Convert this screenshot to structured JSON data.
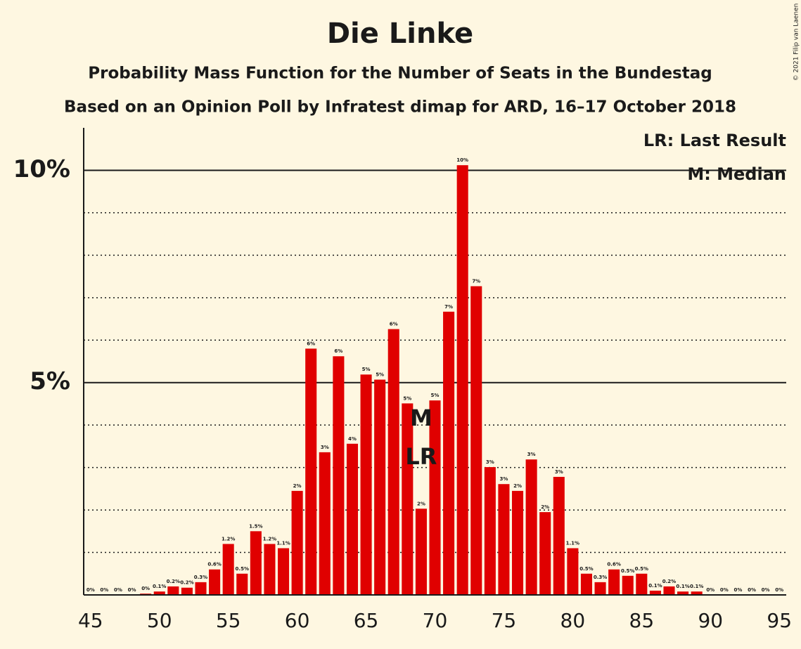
{
  "chart_data": {
    "type": "bar",
    "title": "Die Linke",
    "subtitle": "Probability Mass Function for the Number of Seats in the Bundestag",
    "subtitle2": "Based on an Opinion Poll by Infratest dimap for ARD, 16–17 October 2018",
    "copyright": "© 2021 Filip van Laenen",
    "legend": [
      "LR: Last Result",
      "M: Median"
    ],
    "color": "#e00000",
    "x": [
      45,
      46,
      47,
      48,
      49,
      50,
      51,
      52,
      53,
      54,
      55,
      56,
      57,
      58,
      59,
      60,
      61,
      62,
      63,
      64,
      65,
      66,
      67,
      68,
      69,
      70,
      71,
      72,
      73,
      74,
      75,
      76,
      77,
      78,
      79,
      80,
      81,
      82,
      83,
      84,
      85,
      86,
      87,
      88,
      89,
      90,
      91,
      92,
      93,
      94,
      95
    ],
    "values": [
      0,
      0,
      0,
      0,
      0.03,
      0.08,
      0.2,
      0.17,
      0.3,
      0.6,
      1.2,
      0.5,
      1.5,
      1.2,
      1.1,
      2.45,
      5.8,
      3.36,
      5.62,
      3.56,
      5.19,
      5.07,
      6.26,
      4.51,
      2.03,
      4.58,
      6.67,
      10.12,
      7.27,
      3.01,
      2.61,
      2.45,
      3.19,
      1.95,
      2.78,
      1.1,
      0.5,
      0.3,
      0.6,
      0.45,
      0.5,
      0.1,
      0.2,
      0.08,
      0.08,
      0,
      0,
      0,
      0,
      0,
      0
    ],
    "value_labels": [
      "0%",
      "0%",
      "0%",
      "0%",
      "0%",
      "0.1%",
      "0.2%",
      "0.2%",
      "0.3%",
      "0.6%",
      "1.2%",
      "0.5%",
      "1.5%",
      "1.2%",
      "1.1%",
      "2%",
      "6%",
      "3%",
      "6%",
      "4%",
      "5%",
      "5%",
      "6%",
      "5%",
      "2%",
      "5%",
      "7%",
      "10%",
      "7%",
      "3%",
      "3%",
      "2%",
      "3%",
      "2%",
      "3%",
      "1.1%",
      "0.5%",
      "0.3%",
      "0.6%",
      "0.5%",
      "0.5%",
      "0.1%",
      "0.2%",
      "0.1%",
      "0.1%",
      "0%",
      "0%",
      "0%",
      "0%",
      "0%",
      "0%"
    ],
    "annotations": [
      {
        "text": "M",
        "x": 69
      },
      {
        "text": "LR",
        "x": 69
      }
    ],
    "xlim": [
      44.5,
      95.5
    ],
    "xticks": [
      45,
      50,
      55,
      60,
      65,
      70,
      75,
      80,
      85,
      90,
      95
    ],
    "ylim": [
      0,
      11
    ],
    "yticks": [
      {
        "value": 5,
        "label": "5%"
      },
      {
        "value": 10,
        "label": "10%"
      }
    ],
    "minor_yticks": [
      1,
      2,
      3,
      4,
      6,
      7,
      8,
      9
    ]
  }
}
